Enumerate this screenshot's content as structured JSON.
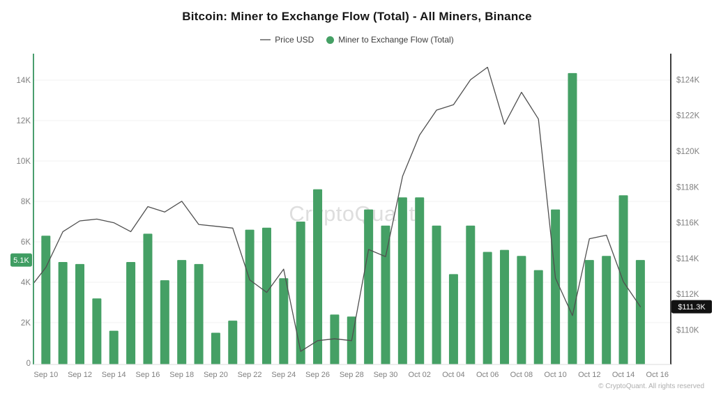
{
  "title": "Bitcoin: Miner to Exchange Flow (Total) - All Miners, Binance",
  "legend": {
    "price": {
      "label": "Price USD"
    },
    "flow": {
      "label": "Miner to Exchange Flow (Total)"
    }
  },
  "watermark": "CryptoQuant",
  "copyright": "© CryptoQuant. All rights reserved",
  "colors": {
    "bar_green": "#45a065",
    "badge_green": "#3f9d62",
    "line_gray": "#4f4f4f",
    "badge_black": "#121212",
    "axis_label_gray": "#7f7f7f",
    "grid": "#f0f0f0",
    "watermark_gray": "#dedede",
    "left_axis_line": "#4a9e6e",
    "right_axis_line": "#3d3d3d",
    "bottom_axis_line": "#e2e2e2"
  },
  "chart_data": {
    "type": "bar+line",
    "title": "Bitcoin: Miner to Exchange Flow (Total) - All Miners, Binance",
    "grid": true,
    "legend_position": "top",
    "categories": [
      "Sep 10",
      "Sep 11",
      "Sep 12",
      "Sep 13",
      "Sep 14",
      "Sep 15",
      "Sep 16",
      "Sep 17",
      "Sep 18",
      "Sep 19",
      "Sep 20",
      "Sep 21",
      "Sep 22",
      "Sep 23",
      "Sep 24",
      "Sep 25",
      "Sep 26",
      "Sep 27",
      "Sep 28",
      "Sep 29",
      "Sep 30",
      "Oct 01",
      "Oct 02",
      "Oct 03",
      "Oct 04",
      "Oct 05",
      "Oct 06",
      "Oct 07",
      "Oct 08",
      "Oct 09",
      "Oct 10",
      "Oct 11",
      "Oct 12",
      "Oct 13",
      "Oct 14",
      "Oct 15"
    ],
    "series": [
      {
        "name": "Miner to Exchange Flow (Total)",
        "type": "bar",
        "axis": "left",
        "unit": "K",
        "values": [
          6.3,
          5.0,
          4.9,
          3.2,
          1.6,
          5.0,
          6.4,
          4.1,
          5.1,
          4.9,
          1.5,
          2.1,
          6.6,
          6.7,
          4.2,
          7.0,
          8.6,
          2.4,
          2.3,
          7.6,
          6.8,
          8.2,
          8.2,
          6.8,
          4.4,
          6.8,
          5.5,
          5.6,
          5.3,
          4.6,
          7.6,
          14.35,
          5.1,
          5.3,
          8.3,
          5.1
        ]
      },
      {
        "name": "Price USD",
        "type": "line",
        "axis": "right",
        "unit": "$K",
        "start_edge_value": 112.6,
        "values": [
          113.5,
          115.5,
          116.1,
          116.2,
          116.0,
          115.5,
          116.9,
          116.6,
          117.2,
          115.9,
          115.8,
          115.7,
          112.8,
          112.1,
          113.4,
          108.8,
          109.4,
          109.5,
          109.4,
          114.5,
          114.1,
          118.6,
          120.9,
          122.3,
          122.6,
          124.0,
          124.7,
          121.5,
          123.3,
          121.8,
          112.9,
          110.8,
          115.1,
          115.3,
          112.7,
          111.3
        ]
      }
    ],
    "x_tick_labels": [
      "Sep 10",
      "Sep 12",
      "Sep 14",
      "Sep 16",
      "Sep 18",
      "Sep 20",
      "Sep 22",
      "Sep 24",
      "Sep 26",
      "Sep 28",
      "Sep 30",
      "Oct 02",
      "Oct 04",
      "Oct 06",
      "Oct 08",
      "Oct 10",
      "Oct 12",
      "Oct 14",
      "Oct 16"
    ],
    "left_axis": {
      "tick_labels": [
        "0",
        "2K",
        "4K",
        "6K",
        "8K",
        "10K",
        "12K",
        "14K"
      ],
      "tick_values": [
        0,
        2,
        4,
        6,
        8,
        10,
        12,
        14
      ],
      "range_k": [
        0,
        15.3
      ],
      "current_value": 5.1,
      "current_value_label": "5.1K"
    },
    "right_axis": {
      "tick_labels": [
        "$110K",
        "$112K",
        "$114K",
        "$116K",
        "$118K",
        "$120K",
        "$122K",
        "$124K"
      ],
      "tick_values": [
        110,
        112,
        114,
        116,
        118,
        120,
        122,
        124
      ],
      "range_usd_k": [
        108.1,
        125.5
      ],
      "current_value": 111.3,
      "current_value_label": "$111.3K"
    }
  }
}
